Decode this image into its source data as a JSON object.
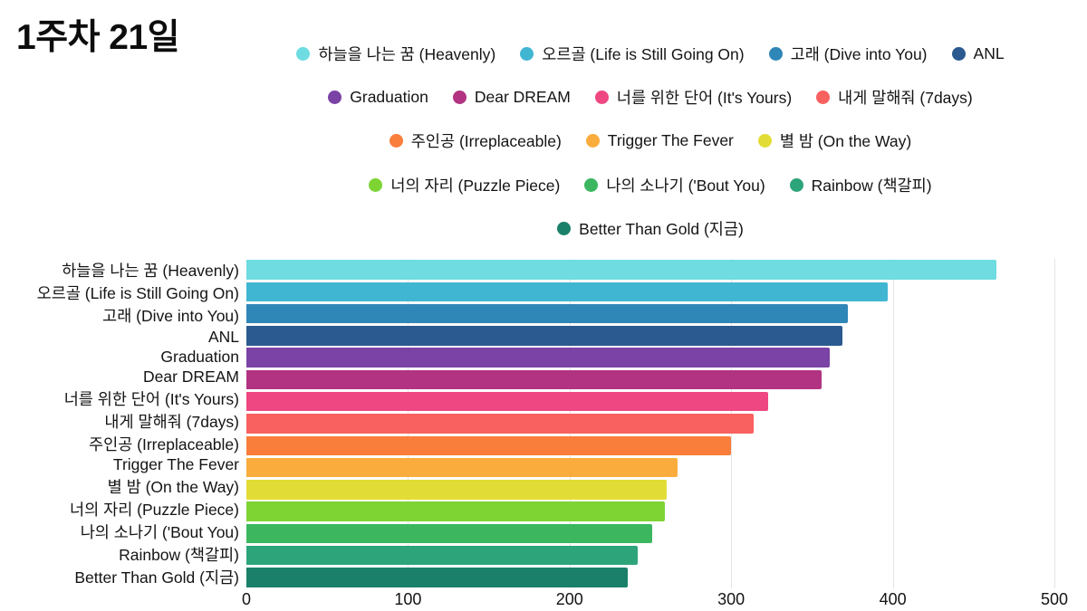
{
  "title": "1주차 21일",
  "chart_data": {
    "type": "bar",
    "orientation": "horizontal",
    "title": "1주차 21일",
    "categories": [
      "하늘을 나는 꿈 (Heavenly)",
      "오르골 (Life is Still Going On)",
      "고래 (Dive into You)",
      "ANL",
      "Graduation",
      "Dear DREAM",
      "너를 위한 단어 (It's Yours)",
      "내게 말해줘 (7days)",
      "주인공 (Irreplaceable)",
      "Trigger The Fever",
      "별 밤 (On the Way)",
      "너의 자리 (Puzzle Piece)",
      "나의 소나기 ('Bout You)",
      "Rainbow (책갈피)",
      "Better Than Gold (지금)"
    ],
    "values": [
      464,
      397,
      372,
      369,
      361,
      356,
      323,
      314,
      300,
      267,
      260,
      259,
      251,
      242,
      236
    ],
    "colors": [
      "#6EDCE1",
      "#41B6D3",
      "#2F87B8",
      "#2A5A8F",
      "#7B43A5",
      "#B23381",
      "#EE4781",
      "#F96060",
      "#F97D3B",
      "#FAAD3C",
      "#E2DD36",
      "#7DD433",
      "#3CB75F",
      "#2EA47A",
      "#1A8069"
    ],
    "xlabel": "",
    "ylabel": "",
    "xlim": [
      0,
      500
    ],
    "xticks": [
      0,
      100,
      200,
      300,
      400,
      500
    ],
    "grid": "vertical",
    "legend_position": "top-center",
    "legend_rows": [
      [
        0,
        1,
        2,
        3
      ],
      [
        4,
        5,
        6,
        7
      ],
      [
        8,
        9,
        10
      ],
      [
        11,
        12,
        13
      ],
      [
        14
      ]
    ]
  }
}
